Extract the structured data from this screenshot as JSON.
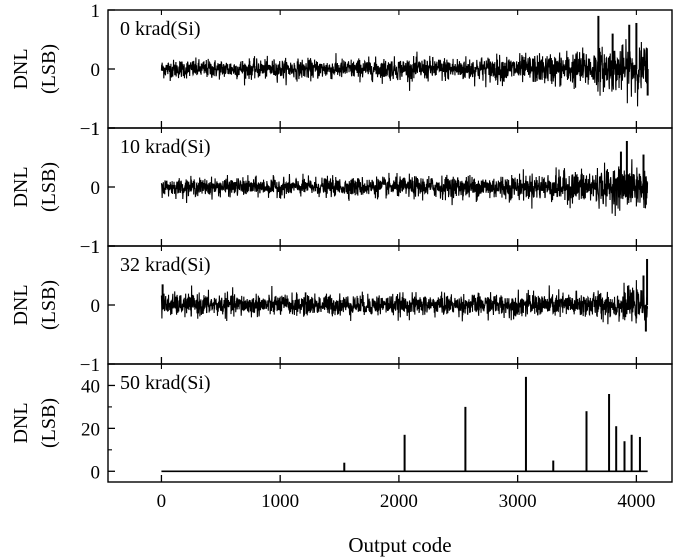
{
  "chart_data": {
    "type": "line",
    "xlabel": "Output code",
    "xlim": [
      -450,
      4300
    ],
    "x_ticks": [
      0,
      1000,
      2000,
      3000,
      4000
    ],
    "ylabel": [
      "DNL",
      "(LSB)"
    ],
    "panels": [
      {
        "name": "0 krad(Si)",
        "ylim": [
          -1,
          1
        ],
        "y_ticks": [
          -1,
          0,
          1
        ],
        "x_range": [
          0,
          4095
        ],
        "typical_amplitude": [
          {
            "x": 0,
            "amp": 0.14
          },
          {
            "x": 1500,
            "amp": 0.15
          },
          {
            "x": 2500,
            "amp": 0.18
          },
          {
            "x": 3200,
            "amp": 0.22
          },
          {
            "x": 3600,
            "amp": 0.3
          },
          {
            "x": 4095,
            "amp": 0.38
          }
        ],
        "spikes": [
          {
            "x": 3680,
            "y": 0.9
          },
          {
            "x": 3940,
            "y": 0.75
          },
          {
            "x": 4000,
            "y": 0.78
          },
          {
            "x": 3800,
            "y": 0.6
          },
          {
            "x": 4095,
            "y": -0.45
          }
        ]
      },
      {
        "name": "10 krad(Si)",
        "ylim": [
          -1,
          1
        ],
        "y_ticks": [
          -1,
          0,
          1
        ],
        "x_range": [
          0,
          4095
        ],
        "typical_amplitude": [
          {
            "x": 0,
            "amp": 0.13
          },
          {
            "x": 1500,
            "amp": 0.14
          },
          {
            "x": 2500,
            "amp": 0.17
          },
          {
            "x": 3200,
            "amp": 0.2
          },
          {
            "x": 3600,
            "amp": 0.27
          },
          {
            "x": 4095,
            "amp": 0.33
          }
        ],
        "spikes": [
          {
            "x": 3920,
            "y": 0.78
          },
          {
            "x": 3870,
            "y": 0.6
          },
          {
            "x": 4060,
            "y": 0.55
          },
          {
            "x": 4080,
            "y": -0.3
          }
        ]
      },
      {
        "name": "32 krad(Si)",
        "ylim": [
          -1,
          1
        ],
        "y_ticks": [
          -1,
          0,
          1
        ],
        "x_range": [
          0,
          4095
        ],
        "typical_amplitude": [
          {
            "x": 0,
            "amp": 0.17
          },
          {
            "x": 1500,
            "amp": 0.16
          },
          {
            "x": 2500,
            "amp": 0.16
          },
          {
            "x": 3200,
            "amp": 0.18
          },
          {
            "x": 3600,
            "amp": 0.2
          },
          {
            "x": 4095,
            "amp": 0.25
          }
        ],
        "spikes": [
          {
            "x": 4090,
            "y": 0.78
          },
          {
            "x": 4060,
            "y": 0.5
          },
          {
            "x": 4080,
            "y": -0.45
          },
          {
            "x": 10,
            "y": 0.35
          }
        ]
      },
      {
        "name": "50 krad(Si)",
        "ylim": [
          -5,
          50
        ],
        "y_ticks": [
          0,
          20,
          40
        ],
        "minor_y_ticks": [
          10,
          30
        ],
        "x_range": [
          0,
          4095
        ],
        "baseline": 0,
        "spikes": [
          {
            "x": 1540,
            "y": 4
          },
          {
            "x": 2048,
            "y": 17
          },
          {
            "x": 2560,
            "y": 30
          },
          {
            "x": 3070,
            "y": 44
          },
          {
            "x": 3300,
            "y": 5
          },
          {
            "x": 3580,
            "y": 28
          },
          {
            "x": 3770,
            "y": 36
          },
          {
            "x": 3830,
            "y": 21
          },
          {
            "x": 3900,
            "y": 14
          },
          {
            "x": 3960,
            "y": 17
          },
          {
            "x": 4030,
            "y": 16
          }
        ]
      }
    ]
  }
}
